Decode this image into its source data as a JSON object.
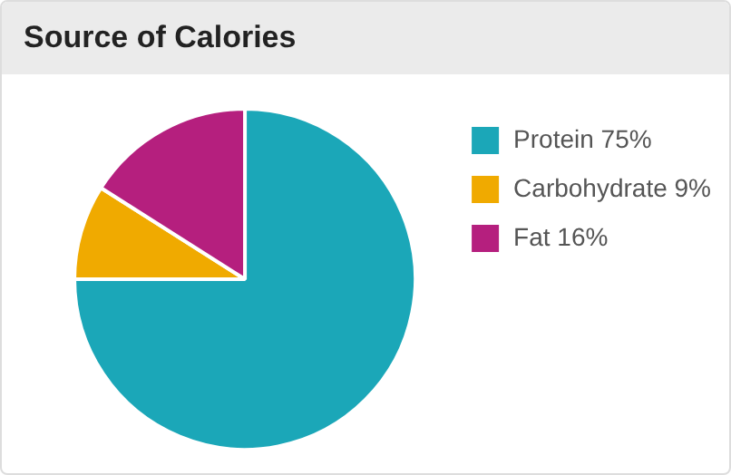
{
  "chart_data": {
    "type": "pie",
    "title": "Source of Calories",
    "categories": [
      "Protein 75%",
      "Carbohydrate 9%",
      "Fat 16%"
    ],
    "values": [
      75,
      9,
      16
    ],
    "colors": [
      "#1ba7b8",
      "#f0aa00",
      "#b51f7e"
    ],
    "legend": "top right"
  }
}
